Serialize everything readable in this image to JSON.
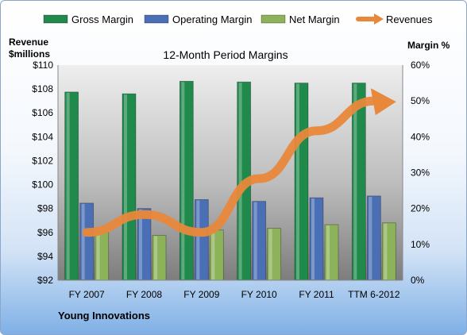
{
  "chart_data": {
    "type": "bar",
    "title": "12-Month Period Margins",
    "company": "Young Innovations",
    "ylabel_left": [
      "Revenue",
      "$millions"
    ],
    "ylabel_right": "Margin %",
    "categories": [
      "FY 2007",
      "FY 2008",
      "FY 2009",
      "FY 2010",
      "FY 2011",
      "TTM 6-2012"
    ],
    "ylim_left": [
      92,
      110
    ],
    "ylim_right": [
      0,
      60
    ],
    "left_ticks": [
      "$92",
      "$94",
      "$96",
      "$98",
      "$100",
      "$102",
      "$104",
      "$106",
      "$108",
      "$110"
    ],
    "right_ticks": [
      "0%",
      "10%",
      "20%",
      "30%",
      "40%",
      "50%",
      "60%"
    ],
    "bar_series": [
      {
        "name": "Gross Margin",
        "color": "#1f8a4c",
        "values": [
          52.5,
          52.0,
          55.5,
          55.3,
          55.0,
          55.0
        ]
      },
      {
        "name": "Operating Margin",
        "color": "#4a6fb5",
        "values": [
          21.5,
          20.0,
          22.5,
          22.0,
          23.0,
          23.5
        ]
      },
      {
        "name": "Net Margin",
        "color": "#8db35a",
        "values": [
          13.5,
          12.5,
          14.0,
          14.5,
          15.5,
          16.0
        ]
      }
    ],
    "line_series": {
      "name": "Revenues",
      "color": "#e8883a",
      "values": [
        96.0,
        97.5,
        96.0,
        100.5,
        104.5,
        107.0
      ]
    },
    "grid": false,
    "legend": "top"
  }
}
